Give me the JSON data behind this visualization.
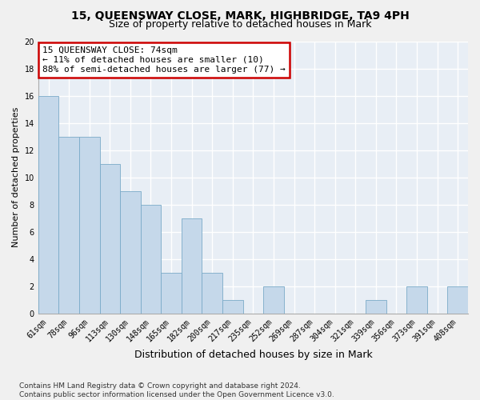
{
  "title": "15, QUEENSWAY CLOSE, MARK, HIGHBRIDGE, TA9 4PH",
  "subtitle": "Size of property relative to detached houses in Mark",
  "xlabel": "Distribution of detached houses by size in Mark",
  "ylabel": "Number of detached properties",
  "categories": [
    "61sqm",
    "78sqm",
    "96sqm",
    "113sqm",
    "130sqm",
    "148sqm",
    "165sqm",
    "182sqm",
    "200sqm",
    "217sqm",
    "235sqm",
    "252sqm",
    "269sqm",
    "287sqm",
    "304sqm",
    "321sqm",
    "339sqm",
    "356sqm",
    "373sqm",
    "391sqm",
    "408sqm"
  ],
  "values": [
    16,
    13,
    13,
    11,
    9,
    8,
    3,
    7,
    3,
    1,
    0,
    2,
    0,
    0,
    0,
    0,
    1,
    0,
    2,
    0,
    2
  ],
  "bar_color": "#c5d8ea",
  "bar_edge_color": "#7aaac8",
  "annotation_line1": "15 QUEENSWAY CLOSE: 74sqm",
  "annotation_line2": "← 11% of detached houses are smaller (10)",
  "annotation_line3": "88% of semi-detached houses are larger (77) →",
  "annotation_box_color": "#ffffff",
  "annotation_box_edge": "#cc0000",
  "ylim": [
    0,
    20
  ],
  "yticks": [
    0,
    2,
    4,
    6,
    8,
    10,
    12,
    14,
    16,
    18,
    20
  ],
  "footer": "Contains HM Land Registry data © Crown copyright and database right 2024.\nContains public sector information licensed under the Open Government Licence v3.0.",
  "bg_color": "#e8eef5",
  "grid_color": "#ffffff",
  "fig_bg_color": "#f0f0f0",
  "title_fontsize": 10,
  "subtitle_fontsize": 9,
  "xlabel_fontsize": 9,
  "ylabel_fontsize": 8,
  "tick_fontsize": 7,
  "annotation_fontsize": 8,
  "footer_fontsize": 6.5
}
